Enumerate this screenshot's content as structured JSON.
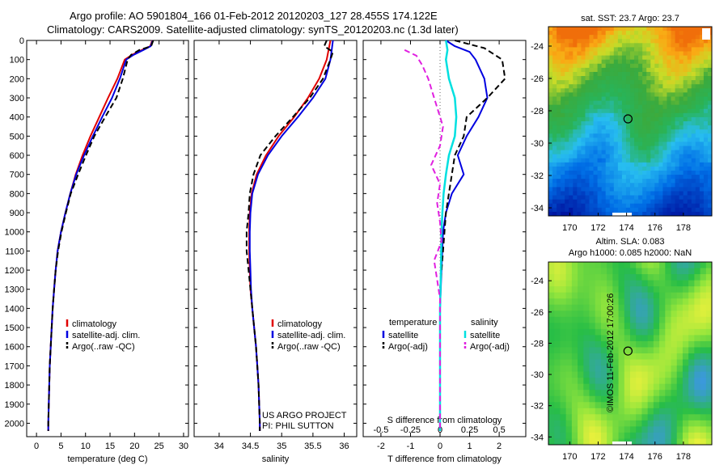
{
  "header": {
    "line1": "Argo profile: AO 5901804_166 01-Feb-2012 20120203_127 28.455S 174.122E",
    "line2": "Climatology: CARS2009. Satellite-adjusted climatology: synTS_20120203.nc (1.3d later)"
  },
  "credit": "©IMOS 11-Feb-2012 17:00:26",
  "colors": {
    "clim": "#e00000",
    "sat": "#0000e0",
    "argo": "#000000",
    "sat_s": "#00e0e0",
    "argo_s": "#e020e0"
  },
  "chart_data": [
    {
      "id": "temperature",
      "type": "line",
      "xlabel": "temperature (deg C)",
      "ylabel": "",
      "xlim": [
        -2,
        31
      ],
      "ylim": [
        0,
        2070
      ],
      "xticks": [
        0,
        5,
        10,
        15,
        20,
        25,
        30
      ],
      "yticks": [
        0,
        100,
        200,
        300,
        400,
        500,
        600,
        700,
        800,
        900,
        1000,
        1100,
        1200,
        1300,
        1400,
        1500,
        1600,
        1700,
        1800,
        1900,
        2000
      ],
      "legend": [
        "climatology",
        "satellite-adj. clim.",
        "Argo(..raw -QC)"
      ],
      "series": [
        {
          "name": "climatology",
          "style": "clim",
          "points": [
            [
              23.6,
              0
            ],
            [
              23.2,
              30
            ],
            [
              21.5,
              50
            ],
            [
              19.5,
              75
            ],
            [
              18.0,
              100
            ],
            [
              16.5,
              200
            ],
            [
              14.6,
              300
            ],
            [
              12.8,
              400
            ],
            [
              11.0,
              500
            ],
            [
              9.4,
              600
            ],
            [
              8.0,
              700
            ],
            [
              6.9,
              800
            ],
            [
              5.9,
              900
            ],
            [
              5.0,
              1000
            ],
            [
              4.3,
              1100
            ],
            [
              3.9,
              1200
            ],
            [
              3.6,
              1300
            ],
            [
              3.3,
              1400
            ],
            [
              3.1,
              1500
            ],
            [
              2.9,
              1600
            ],
            [
              2.7,
              1700
            ],
            [
              2.6,
              1800
            ],
            [
              2.5,
              1900
            ],
            [
              2.4,
              2000
            ],
            [
              2.4,
              2040
            ]
          ]
        },
        {
          "name": "satellite-adj. clim.",
          "style": "sat",
          "points": [
            [
              23.7,
              0
            ],
            [
              23.3,
              30
            ],
            [
              21.8,
              50
            ],
            [
              19.8,
              75
            ],
            [
              18.3,
              100
            ],
            [
              17.0,
              200
            ],
            [
              15.4,
              300
            ],
            [
              13.4,
              400
            ],
            [
              11.5,
              500
            ],
            [
              9.7,
              600
            ],
            [
              8.1,
              700
            ],
            [
              6.9,
              800
            ],
            [
              5.9,
              900
            ],
            [
              5.0,
              1000
            ],
            [
              4.3,
              1100
            ],
            [
              3.9,
              1200
            ],
            [
              3.6,
              1300
            ],
            [
              3.3,
              1400
            ],
            [
              3.1,
              1500
            ],
            [
              2.9,
              1600
            ],
            [
              2.7,
              1700
            ],
            [
              2.6,
              1800
            ],
            [
              2.5,
              1900
            ],
            [
              2.4,
              2000
            ],
            [
              2.4,
              2040
            ]
          ]
        },
        {
          "name": "Argo(..raw -QC)",
          "style": "argo",
          "points": [
            [
              23.8,
              0
            ],
            [
              23.4,
              30
            ],
            [
              21.0,
              50
            ],
            [
              19.3,
              75
            ],
            [
              18.6,
              100
            ],
            [
              17.6,
              200
            ],
            [
              16.3,
              300
            ],
            [
              14.0,
              400
            ],
            [
              11.8,
              500
            ],
            [
              10.1,
              600
            ],
            [
              8.5,
              700
            ],
            [
              7.0,
              800
            ],
            [
              6.0,
              900
            ],
            [
              5.1,
              1000
            ],
            [
              4.4,
              1100
            ],
            [
              3.9,
              1200
            ],
            [
              3.6,
              1300
            ],
            [
              3.3,
              1400
            ],
            [
              3.1,
              1500
            ],
            [
              2.9,
              1600
            ],
            [
              2.7,
              1700
            ],
            [
              2.6,
              1800
            ],
            [
              2.5,
              1900
            ],
            [
              2.4,
              2000
            ],
            [
              2.4,
              2040
            ]
          ]
        }
      ]
    },
    {
      "id": "salinity",
      "type": "line",
      "xlabel": "salinity",
      "ylabel": "",
      "xlim": [
        33.6,
        36.2
      ],
      "ylim": [
        0,
        2070
      ],
      "xticks": [
        34,
        34.5,
        35,
        35.5,
        36
      ],
      "yticks": [],
      "legend": [
        "climatology",
        "satellite-adj. clim.",
        "Argo(..raw -QC)"
      ],
      "annotation": [
        "US ARGO PROJECT",
        "PI: PHIL SUTTON"
      ],
      "series": [
        {
          "name": "climatology",
          "style": "clim",
          "points": [
            [
              35.78,
              0
            ],
            [
              35.75,
              50
            ],
            [
              35.72,
              100
            ],
            [
              35.6,
              200
            ],
            [
              35.42,
              300
            ],
            [
              35.2,
              400
            ],
            [
              34.95,
              500
            ],
            [
              34.75,
              600
            ],
            [
              34.6,
              700
            ],
            [
              34.52,
              800
            ],
            [
              34.49,
              900
            ],
            [
              34.48,
              1000
            ],
            [
              34.48,
              1100
            ],
            [
              34.49,
              1200
            ],
            [
              34.5,
              1300
            ],
            [
              34.53,
              1400
            ],
            [
              34.56,
              1500
            ],
            [
              34.59,
              1600
            ],
            [
              34.61,
              1700
            ],
            [
              34.63,
              1800
            ],
            [
              34.64,
              1900
            ],
            [
              34.65,
              2000
            ],
            [
              34.65,
              2040
            ]
          ]
        },
        {
          "name": "satellite-adj. clim.",
          "style": "sat",
          "points": [
            [
              35.82,
              0
            ],
            [
              35.8,
              50
            ],
            [
              35.78,
              100
            ],
            [
              35.7,
              200
            ],
            [
              35.5,
              300
            ],
            [
              35.26,
              400
            ],
            [
              35.0,
              500
            ],
            [
              34.78,
              600
            ],
            [
              34.62,
              700
            ],
            [
              34.53,
              800
            ],
            [
              34.5,
              900
            ],
            [
              34.49,
              1000
            ],
            [
              34.49,
              1100
            ],
            [
              34.5,
              1200
            ],
            [
              34.51,
              1300
            ],
            [
              34.53,
              1400
            ],
            [
              34.56,
              1500
            ],
            [
              34.59,
              1600
            ],
            [
              34.61,
              1700
            ],
            [
              34.63,
              1800
            ],
            [
              34.64,
              1900
            ],
            [
              34.65,
              2000
            ],
            [
              34.65,
              2040
            ]
          ]
        },
        {
          "name": "Argo(..raw -QC)",
          "style": "argo",
          "points": [
            [
              35.72,
              0
            ],
            [
              35.68,
              30
            ],
            [
              35.82,
              60
            ],
            [
              35.78,
              100
            ],
            [
              35.66,
              200
            ],
            [
              35.45,
              300
            ],
            [
              35.18,
              400
            ],
            [
              34.9,
              500
            ],
            [
              34.66,
              600
            ],
            [
              34.55,
              700
            ],
            [
              34.49,
              800
            ],
            [
              34.47,
              900
            ],
            [
              34.44,
              1000
            ],
            [
              34.44,
              1100
            ],
            [
              34.47,
              1200
            ],
            [
              34.5,
              1300
            ],
            [
              34.53,
              1400
            ],
            [
              34.56,
              1500
            ],
            [
              34.59,
              1600
            ],
            [
              34.61,
              1700
            ],
            [
              34.63,
              1800
            ],
            [
              34.64,
              1900
            ],
            [
              34.65,
              2000
            ],
            [
              34.65,
              2040
            ]
          ]
        }
      ]
    },
    {
      "id": "difference",
      "type": "line",
      "xlabel": "T difference from climatology",
      "xlabel_top": "S difference from climatology",
      "ylabel": "",
      "xlim": [
        -2.6,
        2.9
      ],
      "ylim": [
        0,
        2070
      ],
      "xticks": [
        -2,
        -1,
        0,
        1,
        2
      ],
      "xticks_top_labels": [
        "-0.5",
        "-0.25",
        "0",
        "0.25",
        "0.5"
      ],
      "xticks_top": [
        -2,
        -1,
        0,
        1,
        2
      ],
      "yticks": [],
      "legend_titles": [
        "temperature",
        "salinity"
      ],
      "legend": [
        "satellite",
        "Argo(-adj)",
        "satellite",
        "Argo(-adj)"
      ],
      "series": [
        {
          "name": "temperature satellite",
          "style": "sat",
          "points": [
            [
              0.2,
              0
            ],
            [
              0.5,
              30
            ],
            [
              1.0,
              60
            ],
            [
              1.2,
              100
            ],
            [
              1.5,
              200
            ],
            [
              1.6,
              300
            ],
            [
              1.3,
              400
            ],
            [
              0.9,
              500
            ],
            [
              0.6,
              600
            ],
            [
              0.8,
              700
            ],
            [
              0.4,
              800
            ],
            [
              0.2,
              900
            ],
            [
              0.1,
              1000
            ],
            [
              0.05,
              1200
            ],
            [
              0,
              1400
            ],
            [
              0,
              2040
            ]
          ]
        },
        {
          "name": "temperature Argo(-adj)",
          "style": "argo",
          "points": [
            [
              0.5,
              0
            ],
            [
              1.5,
              40
            ],
            [
              2.1,
              100
            ],
            [
              2.2,
              200
            ],
            [
              1.6,
              300
            ],
            [
              0.9,
              400
            ],
            [
              0.8,
              500
            ],
            [
              0.5,
              600
            ],
            [
              0.4,
              700
            ],
            [
              0.2,
              900
            ],
            [
              0.1,
              1100
            ],
            [
              0,
              1300
            ],
            [
              0,
              2040
            ]
          ]
        },
        {
          "name": "salinity satellite",
          "style": "sat_s",
          "points": [
            [
              0.2,
              0
            ],
            [
              0.25,
              50
            ],
            [
              0.2,
              100
            ],
            [
              0.3,
              200
            ],
            [
              0.5,
              300
            ],
            [
              0.55,
              400
            ],
            [
              0.5,
              500
            ],
            [
              0.3,
              600
            ],
            [
              0.2,
              700
            ],
            [
              0.12,
              800
            ],
            [
              0.08,
              900
            ],
            [
              0.05,
              1000
            ],
            [
              0.03,
              1200
            ],
            [
              0,
              1400
            ],
            [
              0,
              2040
            ]
          ]
        },
        {
          "name": "salinity Argo(-adj)",
          "style": "argo_s",
          "points": [
            [
              -1.2,
              50
            ],
            [
              -0.8,
              80
            ],
            [
              -0.6,
              130
            ],
            [
              -0.4,
              200
            ],
            [
              -0.2,
              300
            ],
            [
              0.1,
              450
            ],
            [
              0.0,
              550
            ],
            [
              -0.3,
              650
            ],
            [
              0.0,
              750
            ],
            [
              -0.1,
              850
            ],
            [
              0.0,
              950
            ],
            [
              0.05,
              1050
            ],
            [
              -0.2,
              1150
            ],
            [
              -0.1,
              1250
            ],
            [
              0.0,
              1350
            ],
            [
              0.0,
              2040
            ]
          ]
        }
      ]
    }
  ],
  "maps": [
    {
      "id": "sst-map",
      "title": "sat. SST: 23.7 Argo: 23.7",
      "title2": "",
      "xticks": [
        170,
        172,
        174,
        176,
        178
      ],
      "yticks": [
        -24,
        -26,
        -28,
        -30,
        -32,
        -34
      ],
      "xlim": [
        168.5,
        180
      ],
      "ylim": [
        -34.5,
        -22.8
      ],
      "marker": [
        174.1,
        -28.5
      ],
      "kind": "sst"
    },
    {
      "id": "sla-map",
      "title": "Altim. SLA: 0.083",
      "title2": "Argo h1000: 0.085 h2000: NaN",
      "xticks": [
        170,
        172,
        174,
        176,
        178
      ],
      "yticks": [
        -24,
        -26,
        -28,
        -30,
        -32,
        -34
      ],
      "xlim": [
        168.5,
        180
      ],
      "ylim": [
        -34.5,
        -22.8
      ],
      "marker": [
        174.1,
        -28.5
      ],
      "kind": "sla"
    }
  ]
}
